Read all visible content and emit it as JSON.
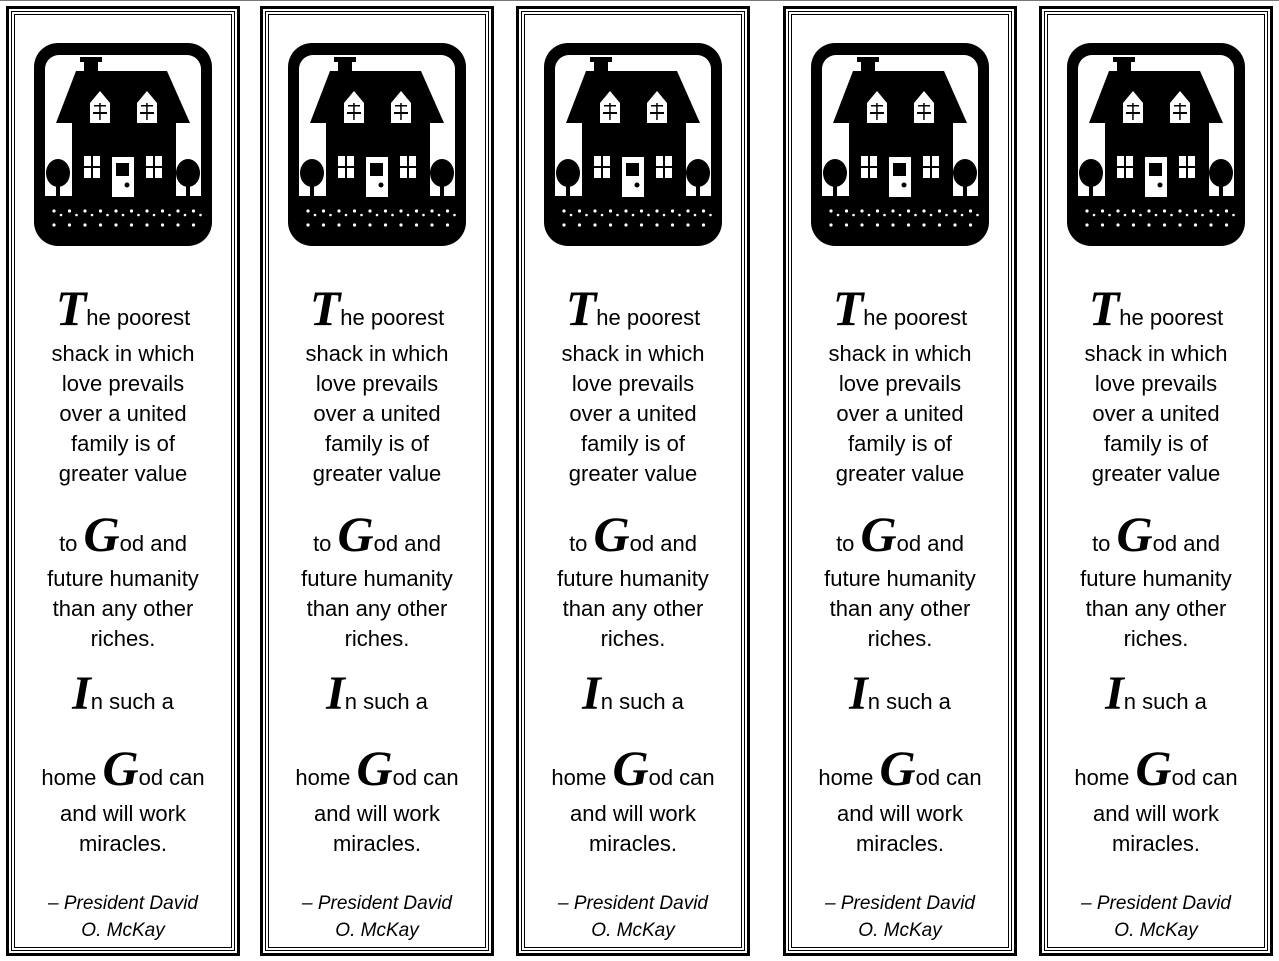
{
  "bookmark_count": 5,
  "icon": "house-icon",
  "quote": {
    "line1_cap": "T",
    "line1_rest": "he poorest",
    "lines_a": [
      "shack in which",
      "love prevails",
      "over a united",
      "family is of",
      "greater value"
    ],
    "to_pre": "to ",
    "god_cap": "G",
    "to_post": "od and",
    "lines_b": [
      "future humanity",
      "than any other",
      "riches."
    ],
    "in_cap": "I",
    "in_rest": "n such a",
    "home_pre": "home ",
    "home_post": "od can",
    "lines_c": [
      "and will work",
      "miracles."
    ]
  },
  "attribution": [
    "– President David",
    "O. McKay"
  ]
}
